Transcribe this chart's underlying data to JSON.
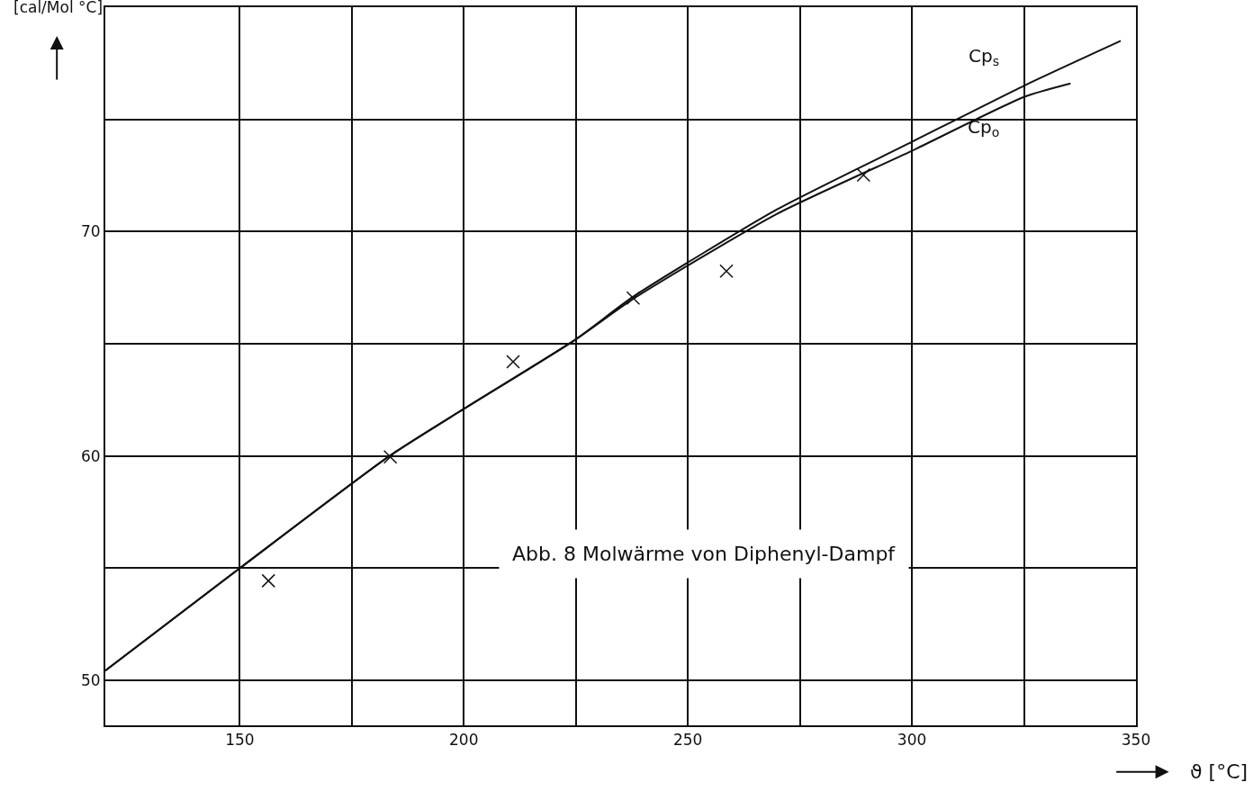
{
  "chart_data": {
    "type": "line",
    "title": "Abb. 8 Molwärme von Diphenyl-Dampf",
    "xlabel": "ϑ [°C]",
    "ylabel": "[cal/Mol °C]",
    "xlim": [
      120,
      350
    ],
    "ylim": [
      48,
      80
    ],
    "xticks": [
      150,
      {
        "value": 175,
        "label": null
      },
      200,
      {
        "value": 225,
        "label": null
      },
      250,
      {
        "value": 275,
        "label": null
      },
      300,
      {
        "value": 325,
        "label": null
      },
      350
    ],
    "yticks": [
      50,
      {
        "value": 55,
        "label": null
      },
      60,
      {
        "value": 65,
        "label": null
      },
      70,
      {
        "value": 75,
        "label": null
      }
    ],
    "grid": true,
    "legend": false,
    "line_style": "solid",
    "marker": "none",
    "series": [
      {
        "name": "Cp$_{s}$",
        "color": "#111111",
        "x": [
          120,
          150,
          183.4,
          200,
          225,
          237.8,
          270,
          300,
          325,
          346.6
        ],
        "values": [
          50.44,
          55,
          60,
          62.1,
          65.2,
          67.1,
          71.0,
          74.0,
          76.5,
          78.5
        ]
      },
      {
        "name": "Cp$_{o}$",
        "color": "#111111",
        "x": [
          120,
          150,
          183.4,
          200,
          225,
          237.8,
          270,
          300,
          325,
          335.4
        ],
        "values": [
          50.44,
          55,
          60,
          62.1,
          65.2,
          67.0,
          70.8,
          73.6,
          76.0,
          76.6
        ]
      },
      {
        "type": "scatter",
        "marker": "cross",
        "color": "#111111",
        "x": [
          156.4,
          183.6,
          211,
          237.8,
          258.6,
          289.2
        ],
        "values": [
          54.44,
          59.96,
          64.2,
          67.04,
          68.24,
          72.52
        ]
      }
    ]
  }
}
